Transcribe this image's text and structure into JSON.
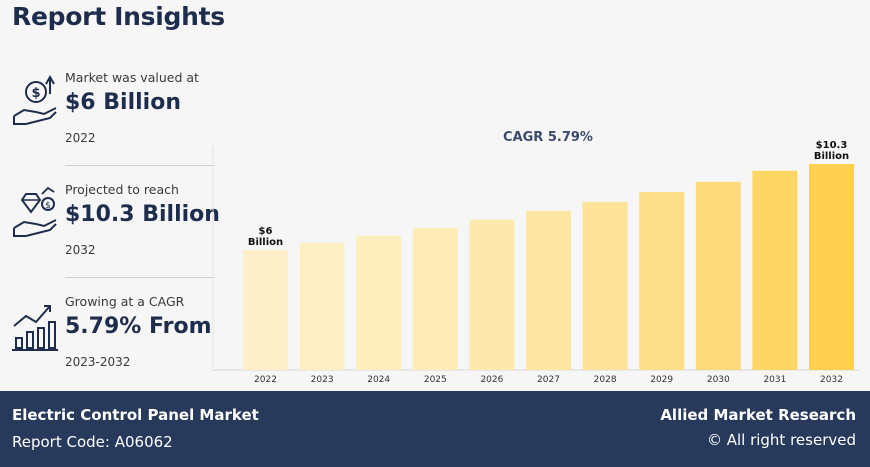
{
  "header": {
    "title": "Report Insights"
  },
  "stats": [
    {
      "label": "Market was valued at",
      "value": "$6 Billion",
      "sub": "2022",
      "icon": "money-hand-icon"
    },
    {
      "label": "Projected to reach",
      "value": "$10.3 Billion",
      "sub": "2032",
      "icon": "diamond-hand-icon"
    },
    {
      "label": "Growing at a CAGR",
      "value": "5.79% From",
      "sub": "2023-2032",
      "icon": "growth-chart-icon"
    }
  ],
  "chart_data": {
    "type": "bar",
    "title": "CAGR 5.79%",
    "categories": [
      "2022",
      "2023",
      "2024",
      "2025",
      "2026",
      "2027",
      "2028",
      "2029",
      "2030",
      "2031",
      "2032"
    ],
    "values": [
      6.0,
      6.35,
      6.72,
      7.11,
      7.52,
      7.95,
      8.41,
      8.9,
      9.41,
      9.96,
      10.3
    ],
    "colors": [
      "#fdf0c8",
      "#fdefc3",
      "#fdeebe",
      "#fdecb7",
      "#fde9ad",
      "#fde6a3",
      "#fde398",
      "#fddf8a",
      "#fdda7a",
      "#fdd565",
      "#fdd14f"
    ],
    "annotations": [
      {
        "index": 0,
        "text": [
          "$6",
          "Billion"
        ]
      },
      {
        "index": 10,
        "text": [
          "$10.3",
          "Billion"
        ]
      }
    ],
    "ylim": [
      0,
      11.2
    ],
    "xlabel": "",
    "ylabel": "",
    "grid": false
  },
  "footer": {
    "market_name": "Electric Control Panel Market",
    "report_code": "Report Code: A06062",
    "brand": "Allied Market Research",
    "rights": "© All right reserved"
  }
}
